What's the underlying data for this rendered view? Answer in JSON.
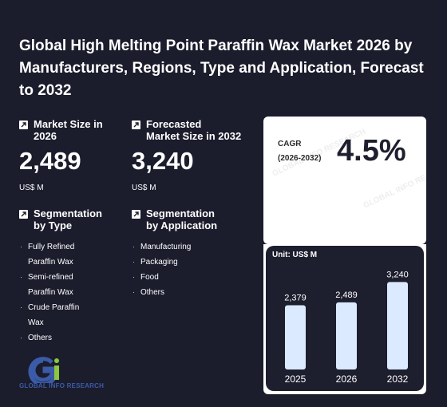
{
  "title": "Global High Melting Point Paraffin Wax Market 2026 by Manufacturers, Regions, Type and Application, Forecast to 2032",
  "market_size": {
    "label_line1": "Market Size in",
    "label_line2": "2026",
    "value": "2,489",
    "unit": "US$ M"
  },
  "forecast": {
    "label_line1": "Forecasted",
    "label_line2": "Market Size in 2032",
    "value": "3,240",
    "unit": "US$ M"
  },
  "seg_type": {
    "label_line1": "Segmentation",
    "label_line2": "by Type",
    "items": [
      [
        "Fully Refined",
        "Paraffin Wax"
      ],
      [
        "Semi-refined",
        "Paraffin Wax"
      ],
      [
        "Crude Paraffin",
        "Wax"
      ],
      [
        "Others"
      ]
    ]
  },
  "seg_app": {
    "label_line1": "Segmentation",
    "label_line2": "by Application",
    "items": [
      [
        "Manufacturing"
      ],
      [
        "Packaging"
      ],
      [
        "Food"
      ],
      [
        "Others"
      ]
    ]
  },
  "cagr": {
    "label_line1": "CAGR",
    "label_line2": "(2026-2032)",
    "value": "4.5%"
  },
  "logo_text": "GLOBAL INFO RESEARCH",
  "watermark_text": "GLOBAL INFO RESEARCH",
  "colors": {
    "background": "#1b1c2c",
    "bar": "#dbeafe",
    "logo_blue": "#3b5ba8",
    "logo_green": "#8dc63f"
  },
  "chart_data": {
    "type": "bar",
    "unit_label": "Unit: US$ M",
    "categories": [
      "2025",
      "2026",
      "2032"
    ],
    "values": [
      2379,
      2489,
      3240
    ],
    "value_labels": [
      "2,379",
      "2,489",
      "3,240"
    ],
    "ylim": [
      0,
      3400
    ],
    "grid": false,
    "legend": "none"
  }
}
